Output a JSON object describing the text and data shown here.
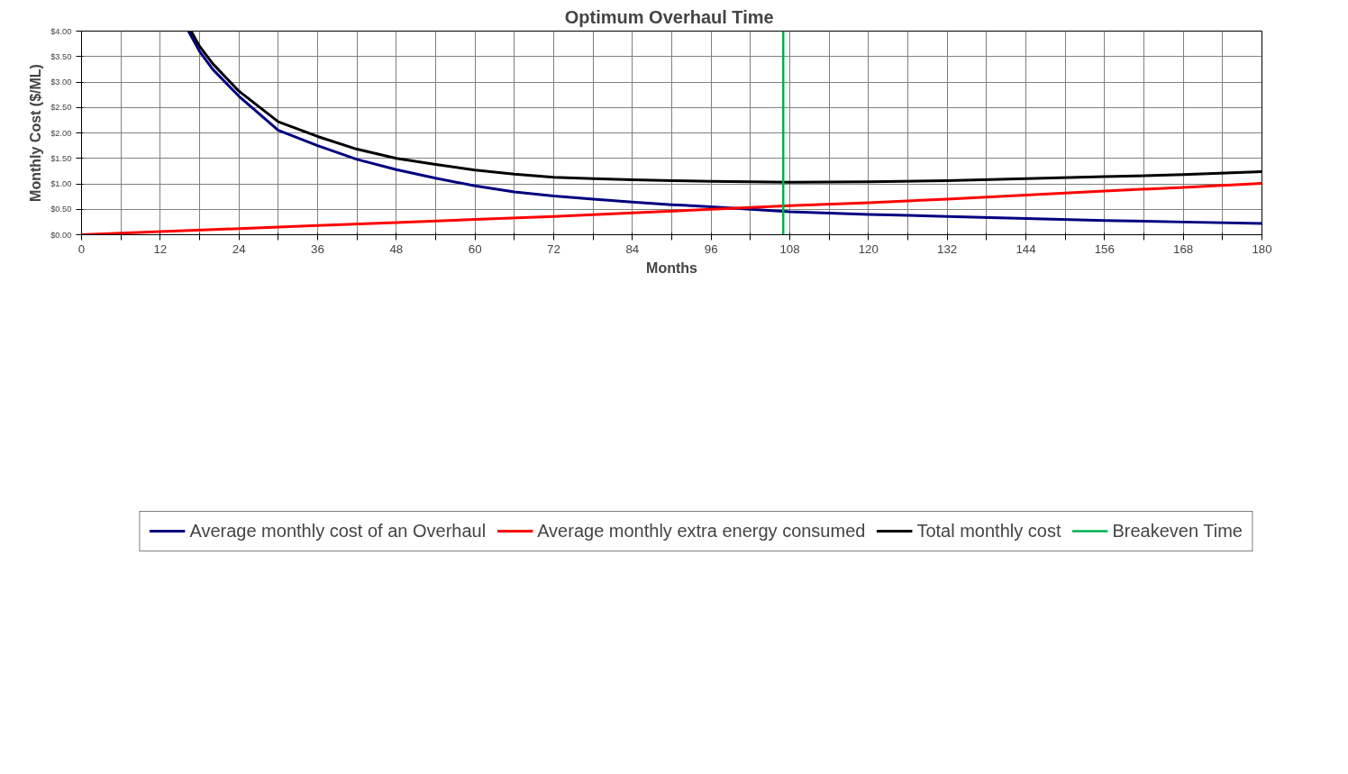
{
  "chart_data": {
    "type": "line",
    "title": "Optimum  Overhaul Time",
    "xlabel": "Months",
    "ylabel": "Monthly Cost ($/ML)",
    "xlim": [
      0,
      180
    ],
    "ylim": [
      0,
      4
    ],
    "xticks": [
      0,
      {
        "value": 6,
        "label": null
      },
      12,
      {
        "value": 18,
        "label": null
      },
      24,
      {
        "value": 30,
        "label": null
      },
      36,
      {
        "value": 42,
        "label": null
      },
      48,
      {
        "value": 54,
        "label": null
      },
      60,
      {
        "value": 66,
        "label": null
      },
      72,
      {
        "value": 78,
        "label": null
      },
      84,
      {
        "value": 90,
        "label": null
      },
      96,
      {
        "value": 102,
        "label": null
      },
      108,
      {
        "value": 114,
        "label": null
      },
      120,
      {
        "value": 126,
        "label": null
      },
      132,
      {
        "value": 138,
        "label": null
      },
      144,
      {
        "value": 150,
        "label": null
      },
      156,
      {
        "value": 162,
        "label": null
      },
      168,
      {
        "value": 174,
        "label": null
      },
      180
    ],
    "yticks": [
      {
        "value": 0,
        "label": "$0.00"
      },
      {
        "value": 0.5,
        "label": "$0.50"
      },
      {
        "value": 1,
        "label": "$1.00"
      },
      {
        "value": 1.5,
        "label": "$1.50"
      },
      {
        "value": 2,
        "label": "$2.00"
      },
      {
        "value": 2.5,
        "label": "$2.50"
      },
      {
        "value": 3,
        "label": "$3.00"
      },
      {
        "value": 3.5,
        "label": "$3.50"
      },
      {
        "value": 4,
        "label": "$4.00"
      }
    ],
    "grid": true,
    "legend": "bottom",
    "marker": "none",
    "line_style": "solid",
    "series": [
      {
        "name": "Average monthly cost of an Overhaul",
        "color": "#000080",
        "x": [
          16.3,
          18,
          20,
          24,
          30,
          36,
          42,
          48,
          54,
          60,
          66,
          72,
          78,
          84,
          90,
          96,
          102,
          108,
          120,
          132,
          144,
          156,
          168,
          180
        ],
        "values": [
          4.0,
          3.6,
          3.25,
          2.72,
          2.05,
          1.75,
          1.48,
          1.28,
          1.11,
          0.96,
          0.84,
          0.76,
          0.7,
          0.64,
          0.59,
          0.55,
          0.5,
          0.45,
          0.4,
          0.36,
          0.32,
          0.28,
          0.25,
          0.22
        ]
      },
      {
        "name": "Average monthly extra energy consumed",
        "color": "#ff0000",
        "x": [
          0,
          12,
          24,
          36,
          48,
          60,
          72,
          84,
          96,
          108,
          120,
          132,
          144,
          156,
          168,
          180
        ],
        "values": [
          0,
          0.06,
          0.12,
          0.18,
          0.24,
          0.3,
          0.36,
          0.43,
          0.5,
          0.57,
          0.63,
          0.7,
          0.78,
          0.86,
          0.93,
          1.01
        ]
      },
      {
        "name": "Total monthly cost",
        "color": "#000000",
        "x": [
          16.7,
          18,
          20,
          24,
          30,
          36,
          42,
          48,
          54,
          60,
          66,
          72,
          78,
          84,
          90,
          96,
          102,
          108,
          120,
          132,
          144,
          156,
          168,
          180
        ],
        "values": [
          4.0,
          3.7,
          3.36,
          2.82,
          2.22,
          1.93,
          1.68,
          1.5,
          1.38,
          1.27,
          1.19,
          1.13,
          1.1,
          1.08,
          1.06,
          1.05,
          1.04,
          1.03,
          1.04,
          1.06,
          1.1,
          1.14,
          1.18,
          1.24
        ]
      }
    ],
    "ref_lines": [
      {
        "axis": "x",
        "value": 107,
        "label": "Breakeven Time",
        "color": "#00b050",
        "line_style": "solid"
      }
    ]
  }
}
